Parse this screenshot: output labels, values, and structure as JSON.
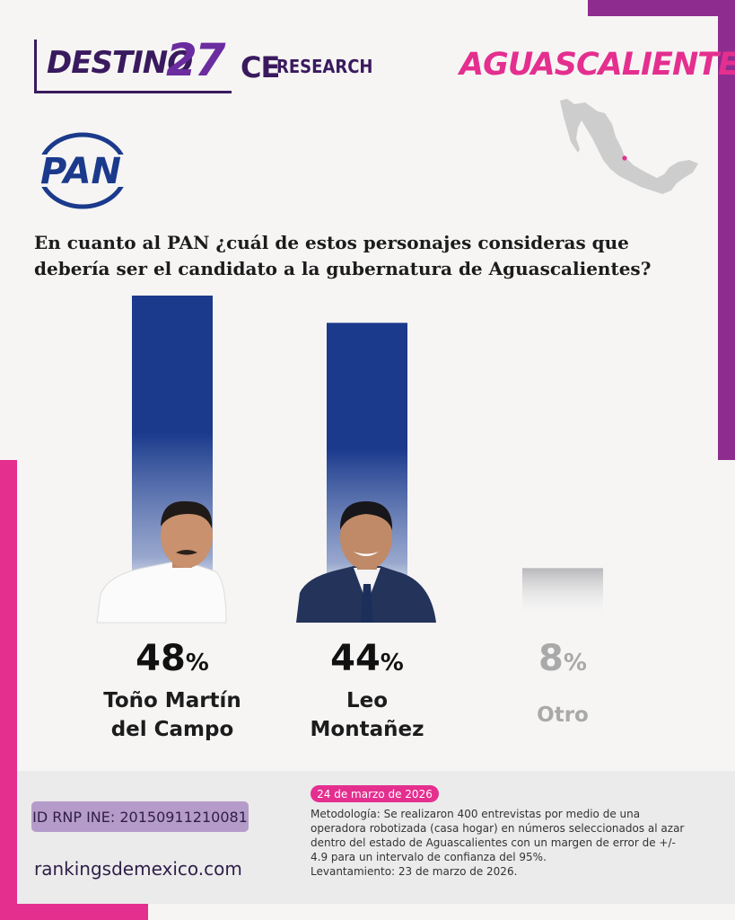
{
  "header": {
    "brand_destino": "DESTINO",
    "brand_number": "27",
    "brand_ce": "CE",
    "brand_research": "RESEARCH",
    "state": "AGUASCALIENTES"
  },
  "party": {
    "logo_text": "PAN"
  },
  "question": "En cuanto al PAN ¿cuál de estos personajes consideras que debería ser el candidato a la gubernatura de Aguascalientes?",
  "colors": {
    "bar_main": "#1b3a8c",
    "bar_other": "#b8b8bb",
    "accent_pink": "#e42f8f",
    "accent_purple": "#8e2c8f"
  },
  "chart_data": {
    "type": "bar",
    "categories": [
      "Toño Martín del Campo",
      "Leo Montañez",
      "Otro"
    ],
    "name_lines": [
      [
        "Toño Martín",
        "del Campo"
      ],
      [
        "Leo",
        "Montañez"
      ],
      [
        "Otro"
      ]
    ],
    "values": [
      48,
      44,
      8
    ],
    "value_labels": [
      "48",
      "44",
      "8"
    ],
    "unit": "%",
    "ylim": [
      0,
      48
    ],
    "bar_colors": [
      "#1b3a8c",
      "#1b3a8c",
      "#b8b8bb"
    ]
  },
  "footer": {
    "rnp": "ID RNP INE: 2015091121008​1",
    "website": "rankingsdemexico.com",
    "date": "24 de marzo de 2026",
    "methodology": "Metodología: Se realizaron 400 entrevistas por medio de una operadora robotizada (casa hogar) en números seleccionados al azar dentro del estado de Aguascalientes con un margen de error de +/- 4.9 para un intervalo de confianza del 95%.",
    "fieldwork": "Levantamiento: 23 de marzo de 2026."
  }
}
